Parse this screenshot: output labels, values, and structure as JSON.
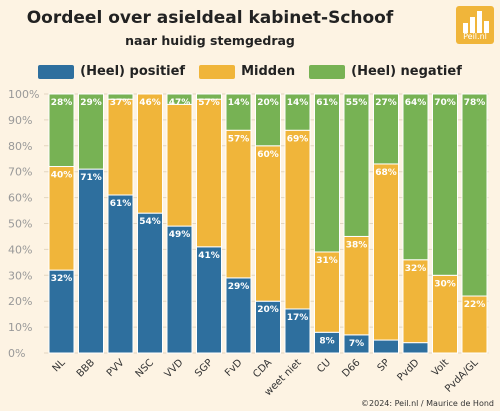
{
  "chart_data": {
    "type": "bar",
    "stacked": true,
    "title": "Oordeel over asieldeal kabinet-Schoof",
    "subtitle": "naar huidig stemgedrag",
    "categories": [
      "NL",
      "BBB",
      "PVV",
      "NSC",
      "VVD",
      "SGP",
      "FvD",
      "CDA",
      "weet niet",
      "CU",
      "D66",
      "SP",
      "PvdD",
      "Volt",
      "PvdA/GL"
    ],
    "series": [
      {
        "name": "(Heel) positief",
        "color": "#2e6f9e",
        "values": [
          32,
          71,
          61,
          54,
          49,
          41,
          29,
          20,
          17,
          8,
          7,
          5,
          4,
          0,
          0
        ],
        "labels": [
          "32%",
          "71%",
          "61%",
          "54%",
          "49%",
          "41%",
          "29%",
          "20%",
          "17%",
          "8%",
          "7%",
          "",
          "",
          "",
          ""
        ]
      },
      {
        "name": "Midden",
        "color": "#f0b53a",
        "values": [
          40,
          0,
          37,
          46,
          47,
          57,
          57,
          60,
          69,
          31,
          38,
          68,
          32,
          30,
          22
        ],
        "labels": [
          "40%",
          "",
          "",
          "",
          "",
          "",
          "57%",
          "60%",
          "69%",
          "31%",
          "38%",
          "68%",
          "32%",
          "30%",
          "22%"
        ]
      },
      {
        "name": "(Heel) negatief",
        "color": "#77b254",
        "values": [
          28,
          29,
          2,
          0,
          4,
          2,
          14,
          20,
          14,
          61,
          55,
          27,
          64,
          70,
          78
        ],
        "labels": [
          "28%",
          "",
          "",
          "",
          "",
          "",
          "14%",
          "20%",
          "14%",
          "61%",
          "55%",
          "27%",
          "64%",
          "70%",
          "78%"
        ]
      }
    ],
    "top_labels": [
      "",
      "29%",
      "37%",
      "46%",
      "47%",
      "57%",
      "",
      "",
      "",
      "",
      "",
      "",
      "",
      "",
      ""
    ],
    "ylim": [
      0,
      100
    ],
    "yticks": [
      "0%",
      "10%",
      "20%",
      "30%",
      "40%",
      "50%",
      "60%",
      "70%",
      "80%",
      "90%",
      "100%"
    ],
    "legend_position": "top"
  },
  "logo": {
    "text": "Peil.nl"
  },
  "credit": "©2024: Peil.nl / Maurice de Hond"
}
